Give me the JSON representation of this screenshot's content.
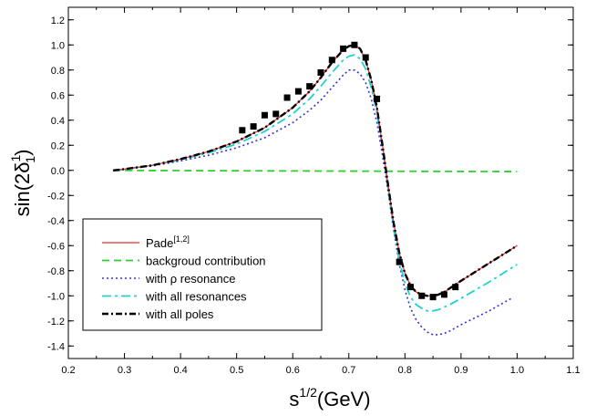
{
  "chart_data": {
    "type": "line",
    "title": "",
    "xlabel": {
      "base": "s",
      "sup": "1/2",
      "rest": "(GeV)"
    },
    "ylabel": {
      "prefix": "sin(2δ",
      "sup": "1",
      "sub": "1",
      "suffix": ")"
    },
    "xlim": [
      0.2,
      1.1
    ],
    "ylim": [
      -1.5,
      1.3
    ],
    "x_ticks": [
      0.2,
      0.3,
      0.4,
      0.5,
      0.6,
      0.7,
      0.8,
      0.9,
      1.0,
      1.1
    ],
    "x_tick_labels": [
      "0.2",
      "0.3",
      "0.4",
      "0.5",
      "0.6",
      "0.7",
      "0.8",
      "0.9",
      "1.0",
      "1.1"
    ],
    "y_ticks": [
      -1.4,
      -1.2,
      -1.0,
      -0.8,
      -0.6,
      -0.4,
      -0.2,
      0.0,
      0.2,
      0.4,
      0.6,
      0.8,
      1.0,
      1.2
    ],
    "y_tick_labels": [
      "-1.4",
      "-1.2",
      "-1.0",
      "-0.8",
      "-0.6",
      "-0.4",
      "-0.2",
      "0.0",
      "0.2",
      "0.4",
      "0.6",
      "0.8",
      "1.0",
      "1.2"
    ],
    "legend_position": "lower-left",
    "series": [
      {
        "name": "Pade",
        "name_sup": "[1,2]",
        "style": "solid",
        "color": "#e03030",
        "x": [
          0.28,
          0.3,
          0.35,
          0.4,
          0.45,
          0.5,
          0.55,
          0.6,
          0.63,
          0.65,
          0.67,
          0.69,
          0.7,
          0.71,
          0.72,
          0.73,
          0.74,
          0.75,
          0.76,
          0.77,
          0.78,
          0.79,
          0.8,
          0.81,
          0.82,
          0.83,
          0.84,
          0.85,
          0.86,
          0.87,
          0.88,
          0.9,
          0.95,
          1.0
        ],
        "y": [
          0.0,
          0.01,
          0.04,
          0.09,
          0.15,
          0.23,
          0.34,
          0.5,
          0.63,
          0.74,
          0.86,
          0.96,
          0.99,
          1.0,
          0.97,
          0.88,
          0.72,
          0.5,
          0.2,
          -0.12,
          -0.42,
          -0.66,
          -0.82,
          -0.92,
          -0.97,
          -0.99,
          -1.0,
          -1.0,
          -0.99,
          -0.97,
          -0.94,
          -0.88,
          -0.74,
          -0.6
        ]
      },
      {
        "name": "backgroud contribution",
        "style": "dashed",
        "color": "#33cc33",
        "x": [
          0.28,
          1.0
        ],
        "y": [
          0.0,
          -0.01
        ]
      },
      {
        "name": "with ρ resonance",
        "style": "dotted",
        "color": "#3333dd",
        "x": [
          0.28,
          0.3,
          0.35,
          0.4,
          0.45,
          0.5,
          0.55,
          0.6,
          0.63,
          0.65,
          0.67,
          0.69,
          0.7,
          0.71,
          0.72,
          0.73,
          0.74,
          0.75,
          0.76,
          0.77,
          0.78,
          0.79,
          0.8,
          0.81,
          0.82,
          0.83,
          0.84,
          0.85,
          0.86,
          0.87,
          0.88,
          0.9,
          0.95,
          0.99
        ],
        "y": [
          0.0,
          0.01,
          0.035,
          0.075,
          0.12,
          0.18,
          0.26,
          0.38,
          0.48,
          0.56,
          0.66,
          0.76,
          0.8,
          0.8,
          0.77,
          0.7,
          0.57,
          0.38,
          0.12,
          -0.17,
          -0.48,
          -0.75,
          -0.95,
          -1.1,
          -1.19,
          -1.25,
          -1.29,
          -1.31,
          -1.31,
          -1.3,
          -1.28,
          -1.23,
          -1.12,
          -1.02
        ]
      },
      {
        "name": "with all resonances",
        "style": "dashdot",
        "color": "#22d0d0",
        "x": [
          0.28,
          0.3,
          0.35,
          0.4,
          0.45,
          0.5,
          0.55,
          0.6,
          0.63,
          0.65,
          0.67,
          0.69,
          0.7,
          0.71,
          0.72,
          0.73,
          0.74,
          0.75,
          0.76,
          0.77,
          0.78,
          0.79,
          0.8,
          0.81,
          0.82,
          0.83,
          0.84,
          0.85,
          0.86,
          0.87,
          0.88,
          0.9,
          0.95,
          1.0
        ],
        "y": [
          0.0,
          0.01,
          0.04,
          0.085,
          0.14,
          0.21,
          0.31,
          0.45,
          0.57,
          0.67,
          0.78,
          0.88,
          0.91,
          0.92,
          0.89,
          0.81,
          0.66,
          0.46,
          0.18,
          -0.14,
          -0.46,
          -0.72,
          -0.9,
          -1.01,
          -1.07,
          -1.1,
          -1.12,
          -1.12,
          -1.11,
          -1.09,
          -1.07,
          -1.02,
          -0.89,
          -0.75
        ]
      },
      {
        "name": "with all poles",
        "style": "dashdotbold",
        "color": "#000000",
        "x": [
          0.28,
          0.3,
          0.35,
          0.4,
          0.45,
          0.5,
          0.55,
          0.6,
          0.63,
          0.65,
          0.67,
          0.69,
          0.7,
          0.71,
          0.72,
          0.73,
          0.74,
          0.75,
          0.76,
          0.77,
          0.78,
          0.79,
          0.8,
          0.81,
          0.82,
          0.83,
          0.84,
          0.85,
          0.86,
          0.87,
          0.88,
          0.9,
          0.95,
          1.0
        ],
        "y": [
          0.0,
          0.01,
          0.04,
          0.09,
          0.15,
          0.23,
          0.34,
          0.5,
          0.63,
          0.74,
          0.86,
          0.96,
          0.99,
          1.0,
          0.97,
          0.88,
          0.72,
          0.5,
          0.2,
          -0.12,
          -0.42,
          -0.66,
          -0.82,
          -0.92,
          -0.97,
          -0.99,
          -1.0,
          -1.0,
          -0.99,
          -0.97,
          -0.94,
          -0.88,
          -0.74,
          -0.6
        ]
      }
    ],
    "data_points": {
      "marker": "filled-square",
      "x": [
        0.51,
        0.53,
        0.55,
        0.57,
        0.59,
        0.61,
        0.63,
        0.65,
        0.67,
        0.69,
        0.71,
        0.73,
        0.75,
        0.79,
        0.81,
        0.83,
        0.85,
        0.87,
        0.89
      ],
      "y": [
        0.32,
        0.35,
        0.44,
        0.45,
        0.58,
        0.63,
        0.67,
        0.78,
        0.88,
        0.97,
        1.0,
        0.9,
        0.57,
        -0.73,
        -0.93,
        -1.0,
        -1.01,
        -0.99,
        -0.93
      ]
    }
  }
}
